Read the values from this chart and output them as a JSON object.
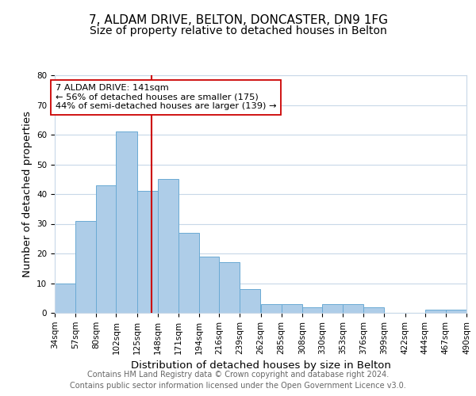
{
  "title": "7, ALDAM DRIVE, BELTON, DONCASTER, DN9 1FG",
  "subtitle": "Size of property relative to detached houses in Belton",
  "xlabel": "Distribution of detached houses by size in Belton",
  "ylabel": "Number of detached properties",
  "bar_color": "#aecde8",
  "bar_edge_color": "#6aaad4",
  "background_color": "#ffffff",
  "grid_color": "#c8d8e8",
  "vline_x": 141,
  "vline_color": "#cc0000",
  "annotation_text": "7 ALDAM DRIVE: 141sqm\n← 56% of detached houses are smaller (175)\n44% of semi-detached houses are larger (139) →",
  "annotation_box_color": "#ffffff",
  "annotation_box_edge": "#cc0000",
  "bin_edges": [
    34,
    57,
    80,
    102,
    125,
    148,
    171,
    194,
    216,
    239,
    262,
    285,
    308,
    330,
    353,
    376,
    399,
    422,
    444,
    467,
    490
  ],
  "bin_labels": [
    "34sqm",
    "57sqm",
    "80sqm",
    "102sqm",
    "125sqm",
    "148sqm",
    "171sqm",
    "194sqm",
    "216sqm",
    "239sqm",
    "262sqm",
    "285sqm",
    "308sqm",
    "330sqm",
    "353sqm",
    "376sqm",
    "399sqm",
    "422sqm",
    "444sqm",
    "467sqm",
    "490sqm"
  ],
  "counts": [
    10,
    31,
    43,
    61,
    41,
    45,
    27,
    19,
    17,
    8,
    3,
    3,
    2,
    3,
    3,
    2,
    0,
    0,
    1,
    1
  ],
  "ylim": [
    0,
    80
  ],
  "yticks": [
    0,
    10,
    20,
    30,
    40,
    50,
    60,
    70,
    80
  ],
  "footer_text": "Contains HM Land Registry data © Crown copyright and database right 2024.\nContains public sector information licensed under the Open Government Licence v3.0.",
  "title_fontsize": 11,
  "subtitle_fontsize": 10,
  "axis_label_fontsize": 9.5,
  "tick_fontsize": 7.5,
  "footer_fontsize": 7.0
}
